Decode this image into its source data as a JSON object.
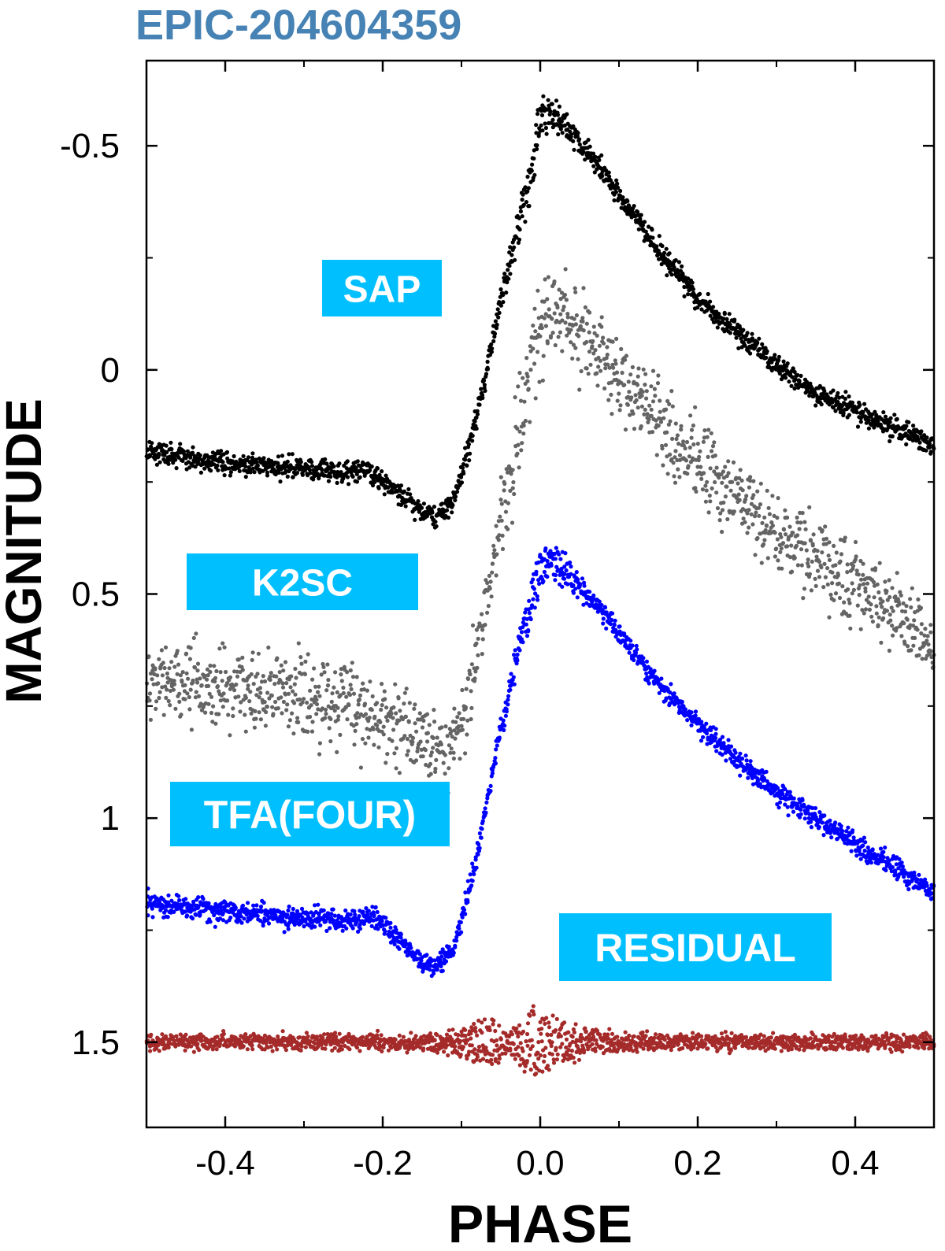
{
  "chart_data": {
    "type": "scatter",
    "title": "EPIC-204604359",
    "xlabel": "PHASE",
    "ylabel": "MAGNITUDE",
    "xlim": [
      -0.5,
      0.5
    ],
    "ylim": [
      -0.69,
      1.69
    ],
    "y_inverted": true,
    "xticks": [
      -0.4,
      -0.2,
      0.0,
      0.2,
      0.4
    ],
    "xtick_labels": [
      "-0.4",
      "-0.2",
      "0.0",
      "0.2",
      "0.4"
    ],
    "yticks": [
      -0.5,
      0,
      0.5,
      1,
      1.5
    ],
    "ytick_labels": [
      "-0.5",
      "0",
      "0.5",
      "1",
      "1.5"
    ],
    "grid": false,
    "labels": [
      {
        "text": "SAP",
        "series": "SAP"
      },
      {
        "text": "K2SC",
        "series": "K2SC"
      },
      {
        "text": "TFA(FOUR)",
        "series": "TFA(FOUR)"
      },
      {
        "text": "RESIDUAL",
        "series": "RESIDUAL"
      }
    ],
    "label_color": "#00bfff",
    "title_color": "#4682b4",
    "series": [
      {
        "name": "SAP",
        "color": "#000000",
        "x": [
          -0.5,
          -0.4,
          -0.3,
          -0.25,
          -0.22,
          -0.18,
          -0.15,
          -0.13,
          -0.11,
          -0.09,
          -0.07,
          -0.05,
          -0.03,
          -0.01,
          0.0,
          0.02,
          0.05,
          0.1,
          0.15,
          0.2,
          0.25,
          0.3,
          0.35,
          0.4,
          0.45,
          0.5
        ],
        "y": [
          0.18,
          0.21,
          0.22,
          0.23,
          0.22,
          0.27,
          0.32,
          0.33,
          0.29,
          0.17,
          0.02,
          -0.16,
          -0.33,
          -0.47,
          -0.6,
          -0.6,
          -0.52,
          -0.39,
          -0.27,
          -0.16,
          -0.08,
          -0.01,
          0.05,
          0.09,
          0.13,
          0.17
        ],
        "scatter": 0.012
      },
      {
        "name": "K2SC",
        "color": "#646464",
        "x": [
          -0.5,
          -0.4,
          -0.3,
          -0.25,
          -0.2,
          -0.15,
          -0.12,
          -0.1,
          -0.08,
          -0.06,
          -0.04,
          -0.02,
          0.0,
          0.02,
          0.05,
          0.1,
          0.15,
          0.2,
          0.25,
          0.3,
          0.35,
          0.4,
          0.45,
          0.5
        ],
        "y": [
          0.69,
          0.71,
          0.73,
          0.74,
          0.78,
          0.83,
          0.86,
          0.79,
          0.63,
          0.43,
          0.25,
          0.04,
          -0.15,
          -0.17,
          -0.1,
          0.02,
          0.12,
          0.21,
          0.29,
          0.36,
          0.42,
          0.48,
          0.54,
          0.62
        ],
        "scatter": 0.045
      },
      {
        "name": "TFA(FOUR)",
        "color": "#0000ff",
        "x": [
          -0.5,
          -0.4,
          -0.3,
          -0.25,
          -0.21,
          -0.18,
          -0.15,
          -0.13,
          -0.11,
          -0.09,
          -0.07,
          -0.05,
          -0.03,
          -0.01,
          0.0,
          0.02,
          0.05,
          0.1,
          0.15,
          0.2,
          0.25,
          0.3,
          0.35,
          0.4,
          0.45,
          0.5
        ],
        "y": [
          1.19,
          1.21,
          1.22,
          1.23,
          1.22,
          1.27,
          1.32,
          1.33,
          1.29,
          1.16,
          0.99,
          0.79,
          0.62,
          0.48,
          0.4,
          0.4,
          0.47,
          0.59,
          0.7,
          0.79,
          0.87,
          0.94,
          1.0,
          1.06,
          1.11,
          1.17
        ],
        "scatter": 0.012
      },
      {
        "name": "RESIDUAL",
        "color": "#a52a2a",
        "x": [
          -0.5,
          -0.3,
          -0.15,
          -0.1,
          -0.08,
          -0.06,
          -0.04,
          -0.02,
          0.0,
          0.03,
          0.06,
          0.1,
          0.2,
          0.35,
          0.5
        ],
        "y": [
          1.5,
          1.5,
          1.5,
          1.5,
          1.5,
          1.5,
          1.5,
          1.5,
          1.5,
          1.5,
          1.5,
          1.5,
          1.5,
          1.5,
          1.5
        ],
        "spread": [
          0.012,
          0.012,
          0.012,
          0.03,
          0.05,
          0.05,
          0.02,
          0.08,
          0.07,
          0.05,
          0.03,
          0.015,
          0.012,
          0.012,
          0.012
        ],
        "scatter": 0.006
      }
    ]
  }
}
